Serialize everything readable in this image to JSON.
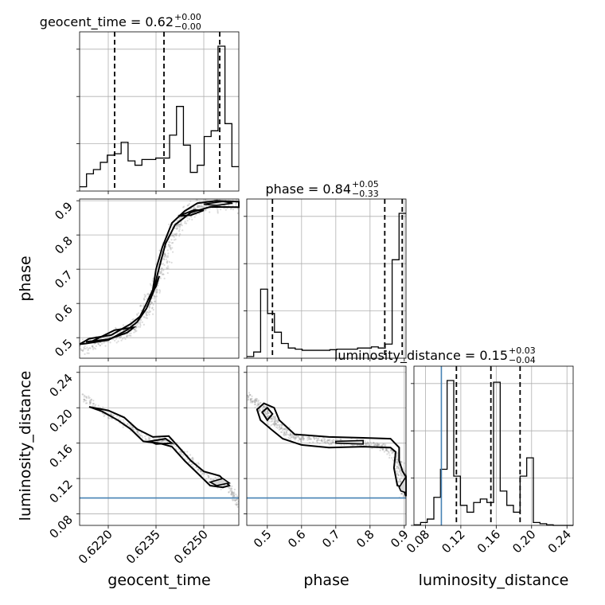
{
  "chart_data": {
    "type": "corner",
    "parameters": [
      {
        "name": "geocent_time",
        "range": [
          0.6211,
          0.6261
        ],
        "ticks": [
          0.622,
          0.6235,
          0.625
        ],
        "tick_labels": [
          "0.6220",
          "0.6235",
          "0.6250"
        ]
      },
      {
        "name": "phase",
        "range": [
          0.44,
          0.905
        ],
        "ticks": [
          0.5,
          0.6,
          0.7,
          0.8,
          0.9
        ],
        "tick_labels": [
          "0.5",
          "0.6",
          "0.7",
          "0.8",
          "0.9"
        ]
      },
      {
        "name": "luminosity_distance",
        "range": [
          0.067,
          0.247
        ],
        "ticks": [
          0.08,
          0.12,
          0.16,
          0.2,
          0.24
        ],
        "tick_labels": [
          "0.08",
          "0.12",
          "0.16",
          "0.20",
          "0.24"
        ]
      }
    ],
    "titles": [
      {
        "label": "geocent_time = 0.62",
        "sup": "+0.00",
        "sub": "−0.00"
      },
      {
        "label": "phase = 0.84",
        "sup": "+0.05",
        "sub": "−0.33"
      },
      {
        "label": "luminosity_distance = 0.15",
        "sup": "+0.03",
        "sub": "−0.04"
      }
    ],
    "histograms": [
      {
        "param": "geocent_time",
        "counts": [
          0.6,
          2.4,
          3.0,
          4.0,
          5.0,
          5.2,
          6.8,
          4.2,
          3.6,
          4.4,
          4.4,
          4.6,
          4.6,
          7.8,
          11.8,
          6.4,
          2.6,
          3.6,
          7.6,
          8.4,
          20.2,
          9.4,
          3.4
        ],
        "quantiles": [
          0.6222,
          0.62375,
          0.6255
        ]
      },
      {
        "param": "phase",
        "counts": [
          0.3,
          1.1,
          12.2,
          7.9,
          4.6,
          2.6,
          1.8,
          1.6,
          1.4,
          1.4,
          1.4,
          1.4,
          1.5,
          1.6,
          1.6,
          1.6,
          1.8,
          1.8,
          2.0,
          1.8,
          2.5,
          17.4,
          25.6
        ],
        "quantiles": [
          0.515,
          0.843,
          0.894
        ]
      },
      {
        "param": "luminosity_distance",
        "counts": [
          0.1,
          0.5,
          1.1,
          4.9,
          9.8,
          25.3,
          8.6,
          3.5,
          2.3,
          4.0,
          4.6,
          4.0,
          25.0,
          6.0,
          3.5,
          2.3,
          8.6,
          11.8,
          0.5,
          0.3,
          0.1,
          0,
          0,
          0
        ],
        "quantiles": [
          0.115,
          0.154,
          0.187
        ]
      }
    ],
    "truths": {
      "luminosity_distance": 0.098
    },
    "yticks_diag0": 3,
    "grid": true
  }
}
